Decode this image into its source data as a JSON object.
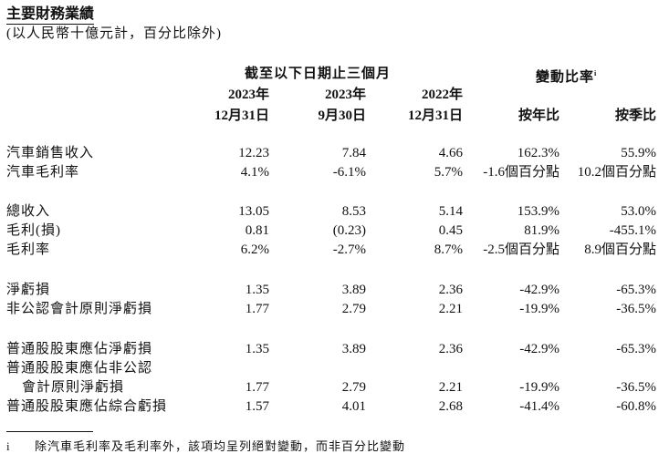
{
  "title": "主要財務業績",
  "subtitle": "(以人民幣十億元計，百分比除外)",
  "header": {
    "period_group": "截至以下日期止三個月",
    "change_group": "變動比率",
    "change_note_marker": "i",
    "columns": [
      {
        "year": "2023年",
        "date": "12月31日"
      },
      {
        "year": "2023年",
        "date": "9月30日"
      },
      {
        "year": "2022年",
        "date": "12月31日"
      }
    ],
    "yoy": "按年比",
    "qoq": "按季比"
  },
  "rows": [
    {
      "label": "汽車銷售收入",
      "values": [
        "12.23",
        "7.84",
        "4.66",
        "162.3%",
        "55.9%"
      ]
    },
    {
      "label": "汽車毛利率",
      "values": [
        "4.1%",
        "-6.1%",
        "5.7%",
        "-1.6個百分點",
        "10.2個百分點"
      ]
    },
    {
      "label": "總收入",
      "values": [
        "13.05",
        "8.53",
        "5.14",
        "153.9%",
        "53.0%"
      ]
    },
    {
      "label": "毛利(損)",
      "values": [
        "0.81",
        "(0.23)",
        "0.45",
        "81.9%",
        "-455.1%"
      ]
    },
    {
      "label": "毛利率",
      "values": [
        "6.2%",
        "-2.7%",
        "8.7%",
        "-2.5個百分點",
        "8.9個百分點"
      ]
    },
    {
      "label": "淨虧損",
      "values": [
        "1.35",
        "3.89",
        "2.36",
        "-42.9%",
        "-65.3%"
      ]
    },
    {
      "label": "非公認會計原則淨虧損",
      "values": [
        "1.77",
        "2.79",
        "2.21",
        "-19.9%",
        "-36.5%"
      ]
    },
    {
      "label": "普通股股東應佔淨虧損",
      "values": [
        "1.35",
        "3.89",
        "2.36",
        "-42.9%",
        "-65.3%"
      ]
    },
    {
      "label": "普通股股東應佔非公認",
      "label2": "會計原則淨虧損",
      "values": [
        "1.77",
        "2.79",
        "2.21",
        "-19.9%",
        "-36.5%"
      ]
    },
    {
      "label": "普通股股東應佔綜合虧損",
      "values": [
        "1.57",
        "4.01",
        "2.68",
        "-41.4%",
        "-60.8%"
      ]
    }
  ],
  "footnote": {
    "marker": "i",
    "text": "除汽車毛利率及毛利率外，該項均呈列絕對變動，而非百分比變動"
  }
}
